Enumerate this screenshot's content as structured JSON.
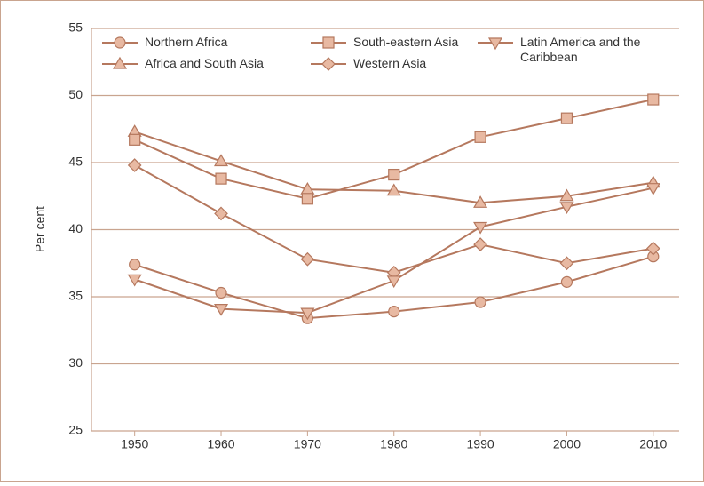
{
  "chart_data": {
    "type": "line",
    "y_label": "Per cent",
    "x": [
      1950,
      1960,
      1970,
      1980,
      1990,
      2000,
      2010
    ],
    "xlim": [
      1945,
      2013
    ],
    "xticks": [
      1950,
      1960,
      1970,
      1980,
      1990,
      2000,
      2010
    ],
    "ylim": [
      25,
      55
    ],
    "yticks": [
      25,
      30,
      35,
      40,
      45,
      50,
      55
    ],
    "grid": true,
    "legend": "top",
    "series": [
      {
        "name": "Northern Africa",
        "marker": "circle",
        "color": "#b5785e",
        "values": [
          37.4,
          35.3,
          33.4,
          33.9,
          34.6,
          36.1,
          38.0
        ]
      },
      {
        "name": "Africa and South Asia",
        "marker": "triangle-up",
        "color": "#b5785e",
        "values": [
          47.3,
          45.1,
          43.0,
          42.9,
          42.0,
          42.5,
          43.5
        ]
      },
      {
        "name": "South-eastern Asia",
        "marker": "square",
        "color": "#b5785e",
        "values": [
          46.7,
          43.8,
          42.3,
          44.1,
          46.9,
          48.3,
          49.7
        ]
      },
      {
        "name": "Western Asia",
        "marker": "diamond",
        "color": "#b5785e",
        "values": [
          44.8,
          41.2,
          37.8,
          36.8,
          38.9,
          37.5,
          38.6
        ]
      },
      {
        "name": "Latin America and the Caribbean",
        "marker": "triangle-down",
        "color": "#b5785e",
        "values": [
          36.3,
          34.1,
          33.8,
          36.2,
          40.2,
          41.7,
          43.1
        ]
      }
    ]
  }
}
